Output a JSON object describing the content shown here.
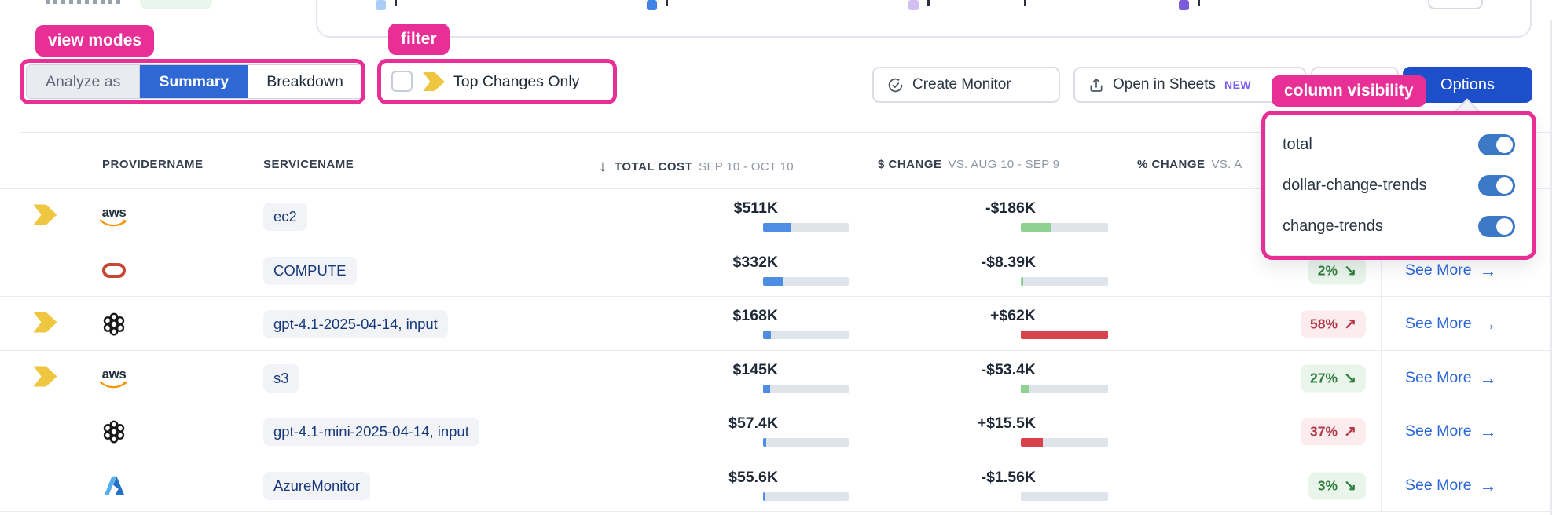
{
  "annotations": {
    "view_modes": "view modes",
    "filter": "filter",
    "column_visibility": "column visibility",
    "accent_color": "#e82f96"
  },
  "view_mode_control": {
    "label": "Analyze as",
    "options": [
      {
        "label": "Summary",
        "selected": true
      },
      {
        "label": "Breakdown",
        "selected": false
      }
    ]
  },
  "filter_control": {
    "label": "Top Changes Only",
    "checked": false
  },
  "toolbar": {
    "create_monitor": "Create Monitor",
    "open_in_sheets": "Open in Sheets",
    "new_badge": "NEW",
    "options": "Options"
  },
  "column_visibility_menu": {
    "items": [
      {
        "label": "total",
        "enabled": true
      },
      {
        "label": "dollar-change-trends",
        "enabled": true
      },
      {
        "label": "change-trends",
        "enabled": true
      }
    ]
  },
  "table": {
    "headers": {
      "provider": "PROVIDERNAME",
      "service": "SERVICENAME",
      "sort_icon": "↓",
      "total_cost": "TOTAL COST",
      "total_cost_period": "SEP 10 - OCT 10",
      "dollar_change": "$ CHANGE",
      "dollar_change_period": "VS. AUG 10 - SEP 9",
      "percent_change": "% CHANGE",
      "percent_change_period": "VS. A"
    },
    "see_more_arrow": "→",
    "up_arrow": "↗",
    "down_arrow": "↘",
    "rows": [
      {
        "flagged": true,
        "provider": "aws",
        "service": "ec2",
        "total": "$511K",
        "total_pct": 33,
        "change": "-$186K",
        "change_pct": 34,
        "change_dir": "down",
        "percent": null,
        "percent_dir": null,
        "see_more": null
      },
      {
        "flagged": false,
        "provider": "oracle",
        "service": "COMPUTE",
        "total": "$332K",
        "total_pct": 23,
        "change": "-$8.39K",
        "change_pct": 3,
        "change_dir": "down",
        "percent": "2%",
        "percent_dir": "down",
        "see_more": "See More"
      },
      {
        "flagged": true,
        "provider": "openai",
        "service": "gpt-4.1-2025-04-14, input",
        "total": "$168K",
        "total_pct": 9,
        "change": "+$62K",
        "change_pct": 100,
        "change_dir": "up",
        "percent": "58%",
        "percent_dir": "up",
        "see_more": "See More"
      },
      {
        "flagged": true,
        "provider": "aws",
        "service": "s3",
        "total": "$145K",
        "total_pct": 8,
        "change": "-$53.4K",
        "change_pct": 10,
        "change_dir": "down",
        "percent": "27%",
        "percent_dir": "down",
        "see_more": "See More"
      },
      {
        "flagged": false,
        "provider": "openai",
        "service": "gpt-4.1-mini-2025-04-14, input",
        "total": "$57.4K",
        "total_pct": 4,
        "change": "+$15.5K",
        "change_pct": 25,
        "change_dir": "up",
        "percent": "37%",
        "percent_dir": "up",
        "see_more": "See More"
      },
      {
        "flagged": false,
        "provider": "azure",
        "service": "AzureMonitor",
        "total": "$55.6K",
        "total_pct": 3,
        "change": "-$1.56K",
        "change_pct": 0,
        "change_dir": "down",
        "percent": "3%",
        "percent_dir": "down",
        "see_more": "See More"
      }
    ]
  },
  "colors": {
    "total_bar": "#4d8de4",
    "change_down_bar": "#8fd190",
    "change_up_bar": "#d8424d",
    "bar_track": "#dfe3ea",
    "selected_segment_blue": "#2e68d5",
    "options_button_blue": "#1d4fcb",
    "toggle_blue": "#3b79c7",
    "link_blue": "#2b66d9",
    "flag_yellow": "#eec63f",
    "legend_swatches": [
      "#a9cdf6",
      "#3f83e6",
      "#d2bff2",
      "#7a5cd8"
    ]
  }
}
